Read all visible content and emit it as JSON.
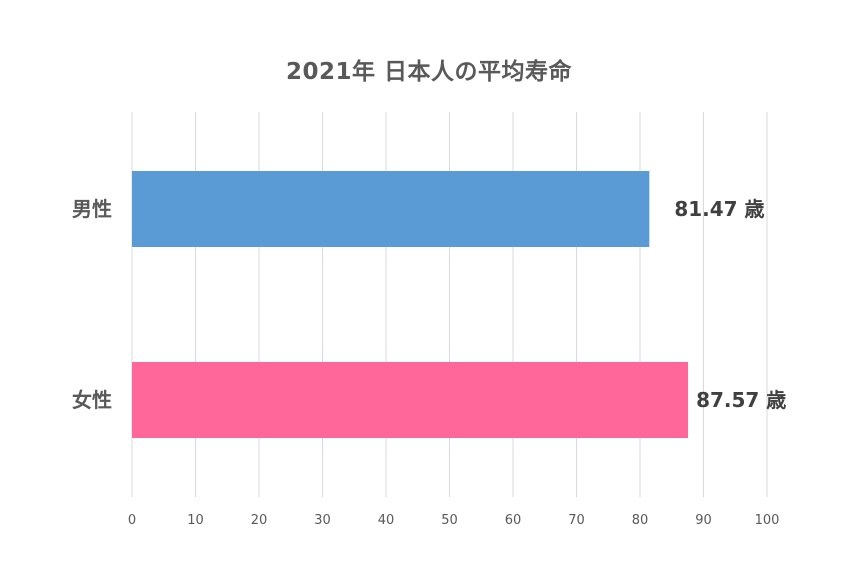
{
  "chart_data": {
    "type": "bar",
    "orientation": "horizontal",
    "title": "2021年 日本人の平均寿命",
    "categories": [
      "男性",
      "女性"
    ],
    "values": [
      81.47,
      87.57
    ],
    "data_labels": [
      "81.47 歳",
      "87.57 歳"
    ],
    "colors": [
      "#5B9BD5",
      "#FF6699"
    ],
    "xlim": [
      0,
      100
    ],
    "xticks": [
      0,
      10,
      20,
      30,
      40,
      50,
      60,
      70,
      80,
      90,
      100
    ],
    "xlabel": "",
    "ylabel": "",
    "grid": true,
    "legend": "none"
  }
}
